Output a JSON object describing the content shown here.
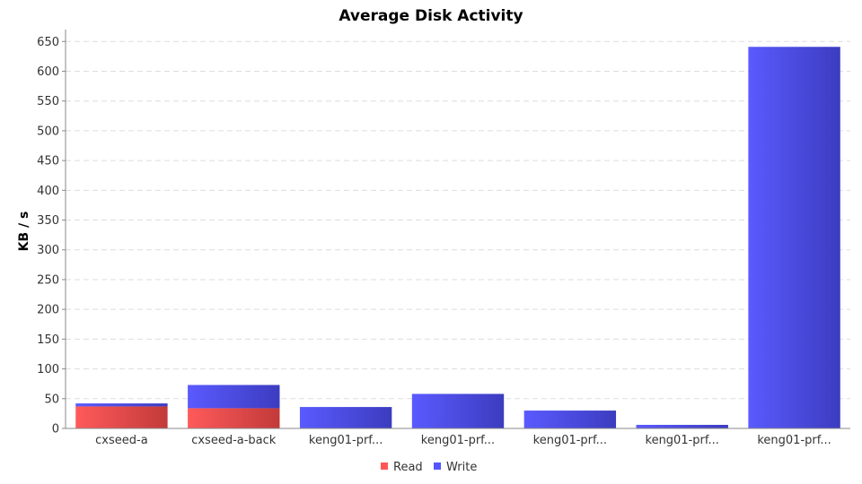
{
  "chart_data": {
    "type": "bar",
    "stacked": true,
    "title": "Average Disk Activity",
    "xlabel": "",
    "ylabel": "KB / s",
    "ylim": [
      0,
      670
    ],
    "yticks": [
      0,
      50,
      100,
      150,
      200,
      250,
      300,
      350,
      400,
      450,
      500,
      550,
      600,
      650
    ],
    "categories": [
      "cxseed-a",
      "cxseed-a-back",
      "keng01-prf...",
      "keng01-prf...",
      "keng01-prf...",
      "keng01-prf...",
      "keng01-prf..."
    ],
    "series": [
      {
        "name": "Read",
        "color": "#ff5555",
        "values": [
          37,
          34,
          0,
          0,
          0,
          0,
          0
        ]
      },
      {
        "name": "Write",
        "color": "#5555ff",
        "values": [
          5,
          39,
          36,
          58,
          30,
          6,
          641
        ]
      }
    ],
    "grid": true,
    "legend": "bottom"
  }
}
